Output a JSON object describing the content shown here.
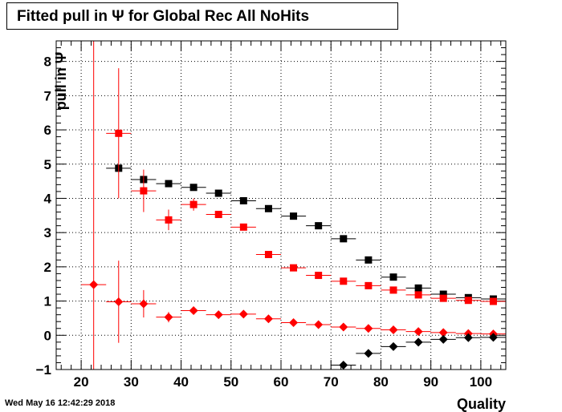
{
  "chart_data": {
    "type": "scatter",
    "title": "Fitted pull in  Ψ  for Global Rec All NoHits",
    "xlabel": "Quality",
    "ylabel": "pull in  Ψ",
    "xlim": [
      15,
      105
    ],
    "ylim": [
      -1,
      8.6
    ],
    "xticks": [
      "20",
      "30",
      "40",
      "50",
      "60",
      "70",
      "80",
      "90",
      "100"
    ],
    "yticks": [
      "−1",
      "0",
      "1",
      "2",
      "3",
      "4",
      "5",
      "6",
      "7",
      "8"
    ],
    "grid": true,
    "legend": "none",
    "series": [
      {
        "marker": "square",
        "color": "#000000",
        "points": [
          {
            "x": 27.5,
            "y": 4.88,
            "xerr": 2.5,
            "yerr": 0.0
          },
          {
            "x": 32.5,
            "y": 4.55,
            "xerr": 2.5,
            "yerr": 0.0
          },
          {
            "x": 37.5,
            "y": 4.43,
            "xerr": 2.5,
            "yerr": 0.0
          },
          {
            "x": 42.5,
            "y": 4.32,
            "xerr": 2.5,
            "yerr": 0.0
          },
          {
            "x": 47.5,
            "y": 4.15,
            "xerr": 2.5,
            "yerr": 0.0
          },
          {
            "x": 52.5,
            "y": 3.93,
            "xerr": 2.5,
            "yerr": 0.0
          },
          {
            "x": 57.5,
            "y": 3.7,
            "xerr": 2.5,
            "yerr": 0.0
          },
          {
            "x": 62.5,
            "y": 3.48,
            "xerr": 2.5,
            "yerr": 0.0
          },
          {
            "x": 67.5,
            "y": 3.2,
            "xerr": 2.5,
            "yerr": 0.0
          },
          {
            "x": 72.5,
            "y": 2.82,
            "xerr": 2.5,
            "yerr": 0.0
          },
          {
            "x": 77.5,
            "y": 2.2,
            "xerr": 2.5,
            "yerr": 0.0
          },
          {
            "x": 82.5,
            "y": 1.7,
            "xerr": 2.5,
            "yerr": 0.0
          },
          {
            "x": 87.5,
            "y": 1.38,
            "xerr": 2.5,
            "yerr": 0.0
          },
          {
            "x": 92.5,
            "y": 1.2,
            "xerr": 2.5,
            "yerr": 0.0
          },
          {
            "x": 97.5,
            "y": 1.1,
            "xerr": 2.5,
            "yerr": 0.0
          },
          {
            "x": 102.5,
            "y": 1.06,
            "xerr": 2.5,
            "yerr": 0.0
          }
        ]
      },
      {
        "marker": "square",
        "color": "#ff0000",
        "points": [
          {
            "x": 27.5,
            "y": 5.9,
            "xerr": 2.5,
            "yerr": 1.9
          },
          {
            "x": 32.5,
            "y": 4.22,
            "xerr": 2.5,
            "yerr": 0.62
          },
          {
            "x": 37.5,
            "y": 3.37,
            "xerr": 2.5,
            "yerr": 0.3
          },
          {
            "x": 42.5,
            "y": 3.82,
            "xerr": 2.5,
            "yerr": 0.18
          },
          {
            "x": 47.5,
            "y": 3.53,
            "xerr": 2.5,
            "yerr": 0.1
          },
          {
            "x": 52.5,
            "y": 3.16,
            "xerr": 2.5,
            "yerr": 0.05
          },
          {
            "x": 57.5,
            "y": 2.36,
            "xerr": 2.5,
            "yerr": 0.04
          },
          {
            "x": 62.5,
            "y": 1.97,
            "xerr": 2.5,
            "yerr": 0.0
          },
          {
            "x": 67.5,
            "y": 1.75,
            "xerr": 2.5,
            "yerr": 0.0
          },
          {
            "x": 72.5,
            "y": 1.58,
            "xerr": 2.5,
            "yerr": 0.0
          },
          {
            "x": 77.5,
            "y": 1.45,
            "xerr": 2.5,
            "yerr": 0.0
          },
          {
            "x": 82.5,
            "y": 1.32,
            "xerr": 2.5,
            "yerr": 0.0
          },
          {
            "x": 87.5,
            "y": 1.18,
            "xerr": 2.5,
            "yerr": 0.0
          },
          {
            "x": 92.5,
            "y": 1.08,
            "xerr": 2.5,
            "yerr": 0.0
          },
          {
            "x": 97.5,
            "y": 1.02,
            "xerr": 2.5,
            "yerr": 0.0
          },
          {
            "x": 102.5,
            "y": 0.99,
            "xerr": 2.5,
            "yerr": 0.0
          }
        ]
      },
      {
        "marker": "diamond",
        "color": "#ff0000",
        "points": [
          {
            "x": 22.5,
            "y": 1.48,
            "xerr": 2.5,
            "yerr": 8.0
          },
          {
            "x": 27.5,
            "y": 0.98,
            "xerr": 2.5,
            "yerr": 1.2
          },
          {
            "x": 32.5,
            "y": 0.92,
            "xerr": 2.5,
            "yerr": 0.4
          },
          {
            "x": 37.5,
            "y": 0.53,
            "xerr": 2.5,
            "yerr": 0.15
          },
          {
            "x": 42.5,
            "y": 0.72,
            "xerr": 2.5,
            "yerr": 0.1
          },
          {
            "x": 47.5,
            "y": 0.6,
            "xerr": 2.5,
            "yerr": 0.05
          },
          {
            "x": 52.5,
            "y": 0.62,
            "xerr": 2.5,
            "yerr": 0.0
          },
          {
            "x": 57.5,
            "y": 0.48,
            "xerr": 2.5,
            "yerr": 0.0
          },
          {
            "x": 62.5,
            "y": 0.37,
            "xerr": 2.5,
            "yerr": 0.0
          },
          {
            "x": 67.5,
            "y": 0.31,
            "xerr": 2.5,
            "yerr": 0.0
          },
          {
            "x": 72.5,
            "y": 0.24,
            "xerr": 2.5,
            "yerr": 0.0
          },
          {
            "x": 77.5,
            "y": 0.2,
            "xerr": 2.5,
            "yerr": 0.0
          },
          {
            "x": 82.5,
            "y": 0.16,
            "xerr": 2.5,
            "yerr": 0.0
          },
          {
            "x": 87.5,
            "y": 0.11,
            "xerr": 2.5,
            "yerr": 0.0
          },
          {
            "x": 92.5,
            "y": 0.08,
            "xerr": 2.5,
            "yerr": 0.0
          },
          {
            "x": 97.5,
            "y": 0.05,
            "xerr": 2.5,
            "yerr": 0.0
          },
          {
            "x": 102.5,
            "y": 0.04,
            "xerr": 2.5,
            "yerr": 0.0
          }
        ]
      },
      {
        "marker": "diamond",
        "color": "#000000",
        "points": [
          {
            "x": 72.5,
            "y": -0.87,
            "xerr": 2.5,
            "yerr": 0.0
          },
          {
            "x": 77.5,
            "y": -0.53,
            "xerr": 2.5,
            "yerr": 0.0
          },
          {
            "x": 82.5,
            "y": -0.33,
            "xerr": 2.5,
            "yerr": 0.0
          },
          {
            "x": 87.5,
            "y": -0.2,
            "xerr": 2.5,
            "yerr": 0.0
          },
          {
            "x": 92.5,
            "y": -0.12,
            "xerr": 2.5,
            "yerr": 0.0
          },
          {
            "x": 97.5,
            "y": -0.07,
            "xerr": 2.5,
            "yerr": 0.0
          },
          {
            "x": 102.5,
            "y": -0.06,
            "xerr": 2.5,
            "yerr": 0.0
          }
        ]
      }
    ]
  },
  "footer": {
    "timestamp": "Wed May 16 12:42:29 2018"
  }
}
